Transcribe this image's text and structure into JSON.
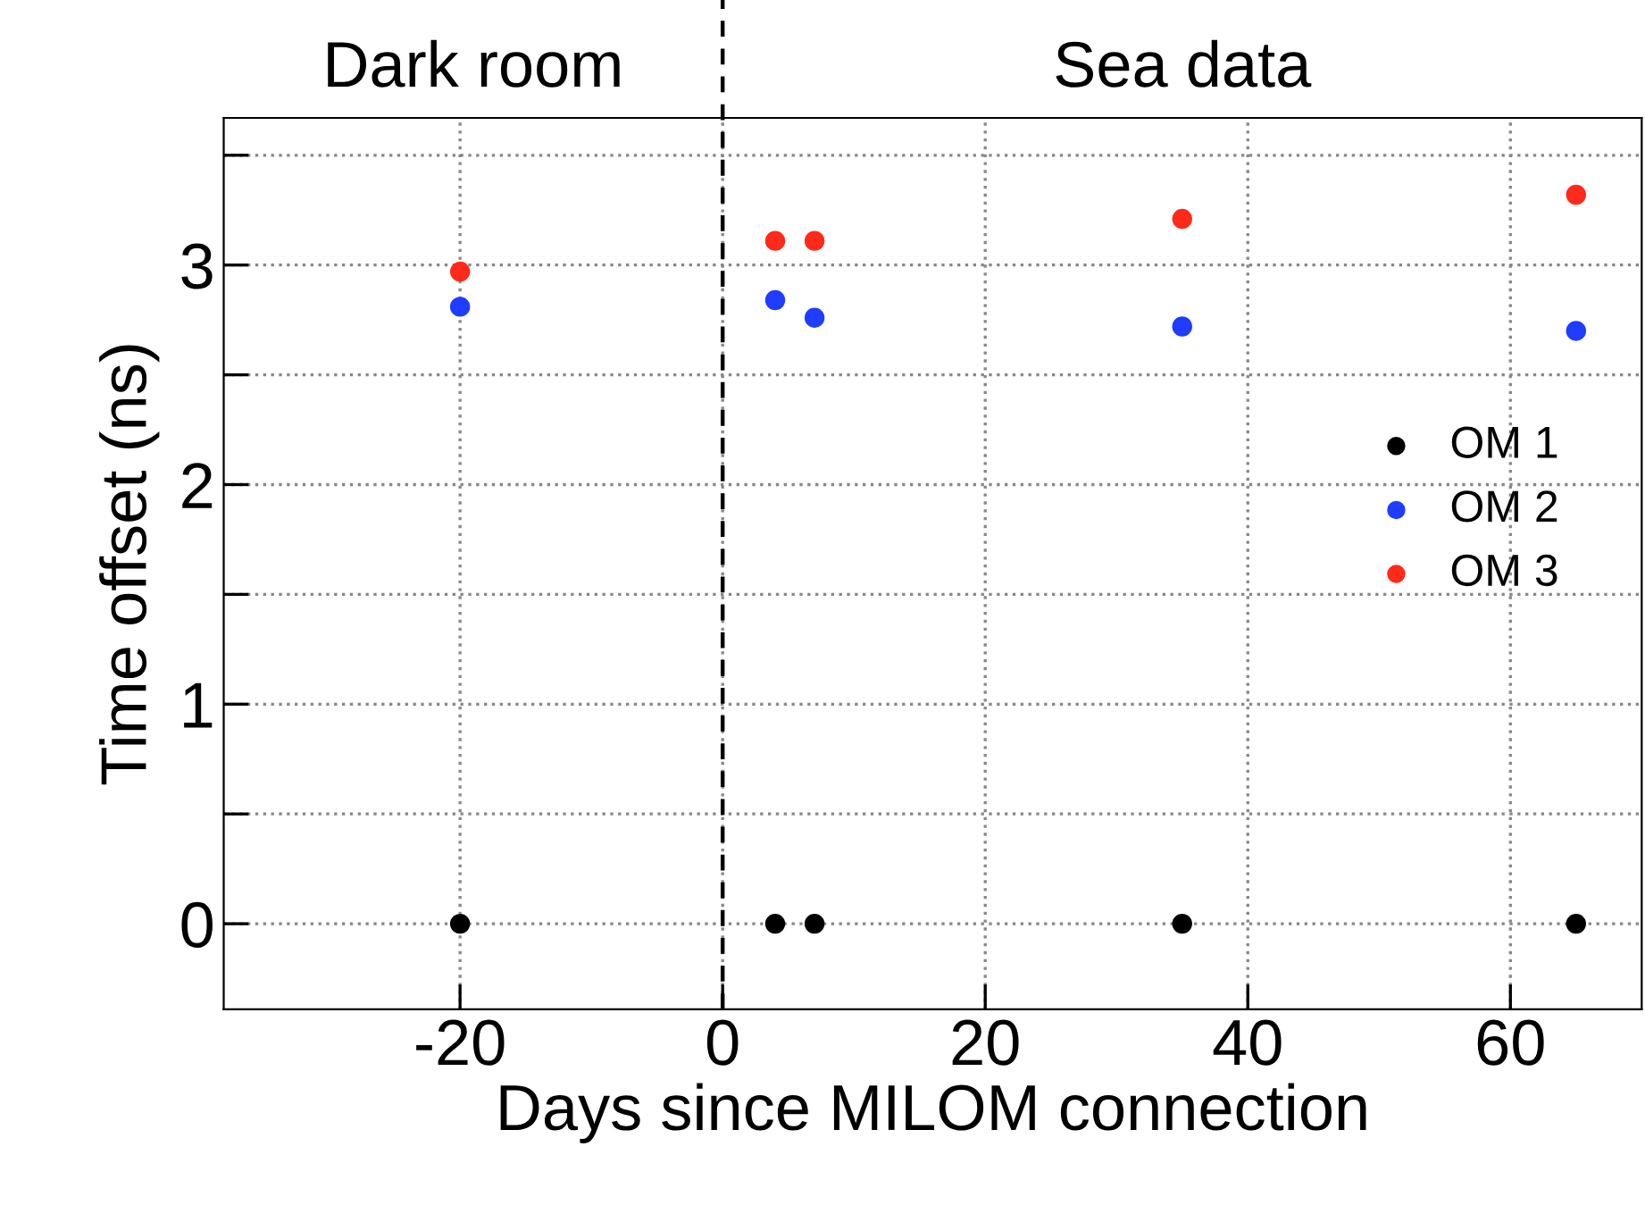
{
  "chart_data": {
    "type": "scatter",
    "xlabel": "Days since MILOM connection",
    "ylabel": "Time offset (ns)",
    "x": [
      -20,
      4,
      7,
      35,
      65
    ],
    "series": [
      {
        "name": "OM 1",
        "color": "#000000",
        "values": [
          0,
          0,
          0,
          0,
          0
        ]
      },
      {
        "name": "OM 2",
        "color": "#1f3cff",
        "values": [
          2.81,
          2.84,
          2.76,
          2.72,
          2.7
        ]
      },
      {
        "name": "OM 3",
        "color": "#ff2a1a",
        "values": [
          2.97,
          3.11,
          3.11,
          3.21,
          3.32
        ]
      }
    ],
    "xlim": [
      -38,
      70
    ],
    "xticks": [
      -20,
      0,
      20,
      40,
      60
    ],
    "ylim": [
      -0.39,
      3.67
    ],
    "yticks": [
      0,
      {
        "value": 0.5,
        "label": null
      },
      1,
      {
        "value": 1.5,
        "label": null
      },
      2,
      {
        "value": 2.5,
        "label": null
      },
      3,
      {
        "value": 3.5,
        "label": null
      }
    ],
    "ref_lines": [
      {
        "axis": "x",
        "value": 0,
        "color": "#000000",
        "line_style": "dashed"
      }
    ],
    "annotations": [
      "Dark room",
      "Sea data"
    ],
    "grid": true,
    "legend": "right",
    "marker": "circle"
  }
}
